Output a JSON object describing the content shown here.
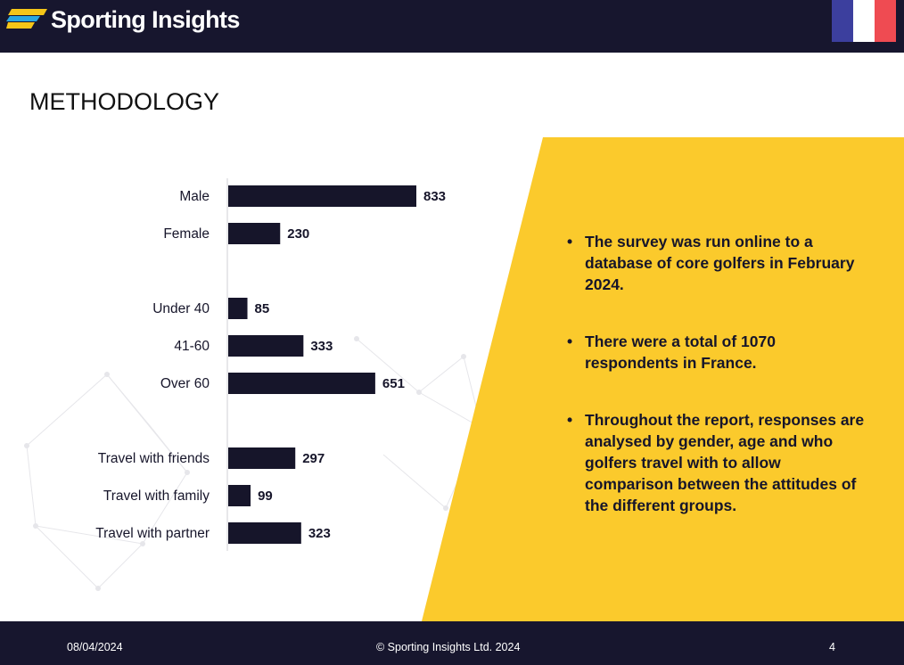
{
  "header": {
    "brand": "Sporting Insights",
    "flag_colors": [
      "#3c3f9e",
      "#ffffff",
      "#ef4b52"
    ],
    "logo_colors": [
      "#f5c518",
      "#2aa6e0"
    ]
  },
  "title": "METHODOLOGY",
  "colors": {
    "navy": "#17162e",
    "bar": "#16152a",
    "yellow": "#fbca2c"
  },
  "bullets": [
    "The survey was run online to a database of core golfers in February 2024.",
    "There were a total of 1070 respondents in France.",
    "Throughout the report, responses are analysed by gender, age and who golfers travel with to allow comparison between the attitudes of the different groups."
  ],
  "chart_data": {
    "type": "bar",
    "orientation": "horizontal",
    "categories": [
      "Male",
      "Female",
      "Under 40",
      "41-60",
      "Over 60",
      "Travel with friends",
      "Travel with family",
      "Travel with partner"
    ],
    "groups": [
      [
        "Male",
        "Female"
      ],
      [
        "Under 40",
        "41-60",
        "Over 60"
      ],
      [
        "Travel with friends",
        "Travel with family",
        "Travel with partner"
      ]
    ],
    "values": [
      833,
      230,
      85,
      333,
      651,
      297,
      99,
      323
    ],
    "xlim": [
      0,
      833
    ],
    "grid": false,
    "data_labels": true
  },
  "footer": {
    "date": "08/04/2024",
    "copyright": "© Sporting Insights Ltd. 2024",
    "page": "4"
  }
}
